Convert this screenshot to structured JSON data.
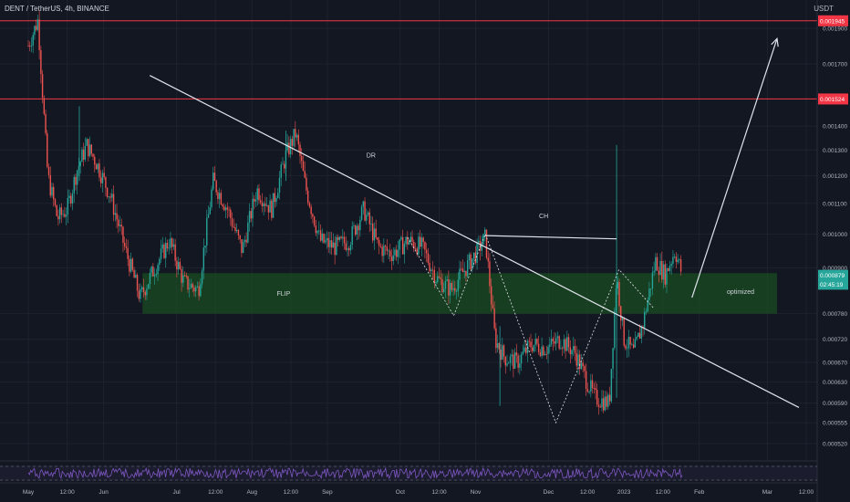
{
  "title": "DENT / TetherUS, 4h, BINANCE",
  "currency": "USDT",
  "colors": {
    "bg": "#131722",
    "grid": "#1e222d",
    "up": "#26a69a",
    "down": "#ef5350",
    "zone": "#1b5e20",
    "line": "#e0e3eb",
    "rsi": "#7e57c2",
    "text": "#b2b5be"
  },
  "chart_data": {
    "type": "candlestick",
    "scale": "log",
    "y_ticks": [
      "0.001900",
      "0.001700",
      "0.001400",
      "0.001300",
      "0.001200",
      "0.001100",
      "0.001000",
      "0.000900",
      "0.000780",
      "0.000720",
      "0.000670",
      "0.000630",
      "0.000590",
      "0.000555",
      "0.000520"
    ],
    "y_tick_values": [
      0.0019,
      0.0017,
      0.0014,
      0.0013,
      0.0012,
      0.0011,
      0.001,
      0.0009,
      0.00078,
      0.00072,
      0.00067,
      0.00063,
      0.00059,
      0.000555,
      0.00052
    ],
    "x_ticks": [
      "May",
      "12:00",
      "Jun",
      "Jul",
      "12:00",
      "Aug",
      "12:00",
      "Sep",
      "Oct",
      "12:00",
      "Nov",
      "Dec",
      "12:00",
      "2023",
      "12:00",
      "Feb",
      "Mar",
      "12:00"
    ],
    "x_tick_dates": [
      "2022-05-01",
      "2022-05-17",
      "2022-06-01",
      "2022-07-01",
      "2022-07-17",
      "2022-08-01",
      "2022-08-17",
      "2022-09-01",
      "2022-10-01",
      "2022-10-17",
      "2022-11-01",
      "2022-12-01",
      "2022-12-17",
      "2023-01-01",
      "2023-01-17",
      "2023-02-01",
      "2023-03-01",
      "2023-03-17"
    ],
    "price_path": [
      [
        "2022-05-01",
        0.0018
      ],
      [
        "2022-05-05",
        0.00195
      ],
      [
        "2022-05-09",
        0.0012
      ],
      [
        "2022-05-13",
        0.00105
      ],
      [
        "2022-05-17",
        0.00108
      ],
      [
        "2022-05-21",
        0.00122
      ],
      [
        "2022-05-25",
        0.00132
      ],
      [
        "2022-05-29",
        0.00125
      ],
      [
        "2022-06-04",
        0.00112
      ],
      [
        "2022-06-10",
        0.00095
      ],
      [
        "2022-06-16",
        0.00082
      ],
      [
        "2022-06-22",
        0.0009
      ],
      [
        "2022-06-28",
        0.00098
      ],
      [
        "2022-07-04",
        0.00086
      ],
      [
        "2022-07-10",
        0.00084
      ],
      [
        "2022-07-16",
        0.00118
      ],
      [
        "2022-07-22",
        0.00108
      ],
      [
        "2022-07-28",
        0.00095
      ],
      [
        "2022-08-03",
        0.00115
      ],
      [
        "2022-08-09",
        0.00108
      ],
      [
        "2022-08-15",
        0.00128
      ],
      [
        "2022-08-19",
        0.00137
      ],
      [
        "2022-08-23",
        0.00116
      ],
      [
        "2022-08-29",
        0.00098
      ],
      [
        "2022-09-04",
        0.00096
      ],
      [
        "2022-09-10",
        0.00098
      ],
      [
        "2022-09-16",
        0.00108
      ],
      [
        "2022-09-22",
        0.00096
      ],
      [
        "2022-09-28",
        0.00094
      ],
      [
        "2022-10-04",
        0.00098
      ],
      [
        "2022-10-10",
        0.00096
      ],
      [
        "2022-10-16",
        0.00087
      ],
      [
        "2022-10-22",
        0.00084
      ],
      [
        "2022-10-26",
        0.00088
      ],
      [
        "2022-11-01",
        0.00094
      ],
      [
        "2022-11-05",
        0.00099
      ],
      [
        "2022-11-09",
        0.00072
      ],
      [
        "2022-11-13",
        0.00068
      ],
      [
        "2022-11-18",
        0.00067
      ],
      [
        "2022-11-24",
        0.00071
      ],
      [
        "2022-11-30",
        0.0007
      ],
      [
        "2022-12-06",
        0.00072
      ],
      [
        "2022-12-12",
        0.00069
      ],
      [
        "2022-12-16",
        0.00064
      ],
      [
        "2022-12-20",
        0.0006
      ],
      [
        "2022-12-26",
        0.00059
      ],
      [
        "2022-12-29",
        0.00088
      ],
      [
        "2023-01-01",
        0.00072
      ],
      [
        "2023-01-05",
        0.00069
      ],
      [
        "2023-01-09",
        0.00076
      ],
      [
        "2023-01-14",
        0.00092
      ],
      [
        "2023-01-18",
        0.00088
      ],
      [
        "2023-01-22",
        0.00095
      ],
      [
        "2023-01-25",
        0.00088
      ]
    ],
    "price_labels": [
      {
        "text": "0.001945",
        "value": 0.001945,
        "color": "#f23645"
      },
      {
        "text": "0.001524",
        "value": 0.001524,
        "color": "#f23645"
      },
      {
        "text": "0.000879",
        "value": 0.000879,
        "color": "#26a69a"
      },
      {
        "text": "02:45:19",
        "value": 0.000855,
        "color": "#26a69a"
      }
    ],
    "horizontal_lines": [
      0.001945,
      0.001524
    ],
    "zone": {
      "from": "2022-06-17",
      "to": "2023-03-05",
      "top": 0.000885,
      "bottom": 0.00078
    },
    "trendlines": [
      {
        "name": "dr-line",
        "from": [
          "2022-06-20",
          0.00164
        ],
        "to": [
          "2023-03-14",
          0.000582
        ]
      },
      {
        "name": "ch-line",
        "from": [
          "2022-11-05",
          0.000995
        ],
        "to": [
          "2022-12-29",
          0.000985
        ]
      },
      {
        "name": "arrow-line",
        "from": [
          "2023-01-29",
          0.00082
        ],
        "to": [
          "2023-03-05",
          0.00184
        ],
        "arrow": true
      }
    ],
    "zigzag": [
      [
        "2022-10-04",
        0.00099
      ],
      [
        "2022-10-23",
        0.000775
      ],
      [
        "2022-11-05",
        0.001
      ],
      [
        "2022-12-04",
        0.000555
      ],
      [
        "2022-12-30",
        0.000895
      ],
      [
        "2023-01-13",
        0.000795
      ]
    ],
    "annotations": [
      {
        "text": "DR",
        "date": "2022-09-19",
        "value": 0.00127
      },
      {
        "text": "CH",
        "date": "2022-11-29",
        "value": 0.00105
      },
      {
        "text": "FLIP",
        "date": "2022-08-14",
        "value": 0.000825
      },
      {
        "text": "optimized",
        "date": "2023-02-18",
        "value": 0.00083
      }
    ],
    "rsi": {
      "date_range": [
        "2022-05-01",
        "2023-01-25"
      ]
    }
  }
}
